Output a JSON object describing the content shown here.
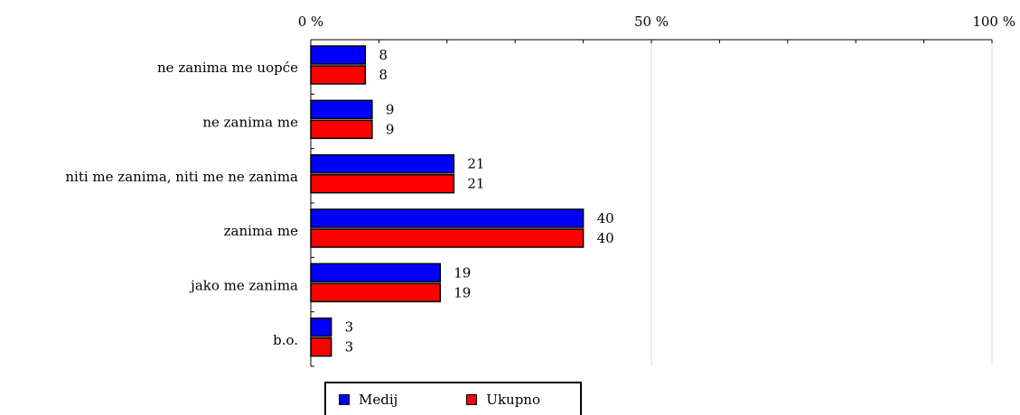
{
  "chart_data": {
    "type": "bar",
    "orientation": "horizontal",
    "categories": [
      "ne zanima me uopće",
      "ne zanima me",
      "niti me zanima, niti me ne zanima",
      "zanima me",
      "jako me zanima",
      "b.o."
    ],
    "series": [
      {
        "name": "Medij",
        "color": "#0000ff",
        "values": [
          8,
          9,
          21,
          40,
          19,
          3
        ]
      },
      {
        "name": "Ukupno",
        "color": "#ff0000",
        "values": [
          8,
          9,
          21,
          40,
          19,
          3
        ]
      }
    ],
    "x_ticks": [
      "0 %",
      "50 %",
      "100 %"
    ],
    "xlim": [
      0,
      100
    ],
    "legend_position": "bottom",
    "grid": true
  }
}
